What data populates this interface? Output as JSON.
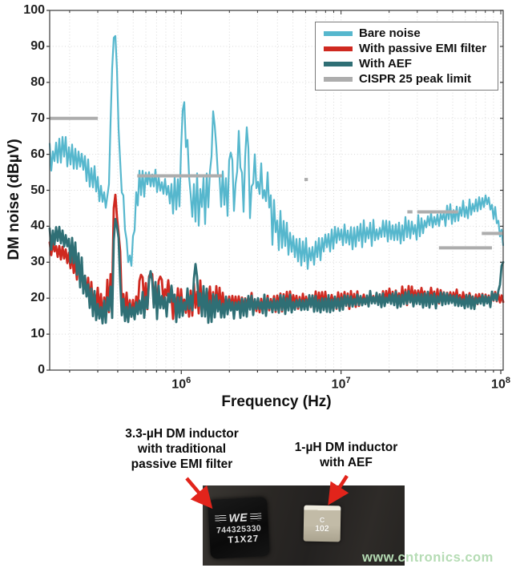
{
  "chart": {
    "y_axis": {
      "label": "DM noise (dBµV)",
      "tick_values": [
        0,
        10,
        20,
        30,
        40,
        50,
        60,
        70,
        80,
        90,
        100
      ]
    },
    "x_axis": {
      "label": "Frequency (Hz)",
      "tick_base": "10",
      "tick_exponents": [
        6,
        7,
        8
      ]
    },
    "legend": [
      {
        "label": "Bare noise",
        "color": "#56b7cd"
      },
      {
        "label": "With passive EMI filter",
        "color": "#cf2920"
      },
      {
        "label": "With AEF",
        "color": "#2f6f75"
      },
      {
        "label": "CISPR 25 peak limit",
        "color": "#adadad"
      }
    ]
  },
  "chart_data": {
    "type": "line",
    "title": "",
    "xlabel": "Frequency (Hz)",
    "ylabel": "DM noise (dBµV)",
    "x_scale": "log",
    "xlim_hz": [
      150000,
      103500000
    ],
    "ylim": [
      0,
      100
    ],
    "grid": true,
    "legend_position": "top-right",
    "series": [
      {
        "name": "Bare noise",
        "color": "#56b7cd",
        "style": "noisy-band",
        "width": 2.2,
        "envelope_f_lo_hi": [
          [
            150000,
            55,
            63
          ],
          [
            180000,
            57,
            67
          ],
          [
            210000,
            55,
            63
          ],
          [
            250000,
            53,
            60
          ],
          [
            300000,
            45,
            56
          ],
          [
            340000,
            42,
            50
          ],
          [
            360000,
            44,
            55
          ],
          [
            390000,
            48,
            62
          ],
          [
            440000,
            34,
            50
          ],
          [
            480000,
            29,
            40
          ],
          [
            530000,
            44,
            56
          ],
          [
            600000,
            49,
            57
          ],
          [
            700000,
            48,
            56
          ],
          [
            850000,
            44,
            55
          ],
          [
            1000000,
            42,
            58
          ],
          [
            1150000,
            40,
            52
          ],
          [
            1350000,
            40,
            57
          ],
          [
            1600000,
            42,
            62
          ],
          [
            1800000,
            40,
            56
          ],
          [
            2100000,
            38,
            58
          ],
          [
            2400000,
            38,
            60
          ],
          [
            2700000,
            38,
            57
          ],
          [
            3000000,
            37,
            56
          ],
          [
            3400000,
            36,
            52
          ],
          [
            3900000,
            34,
            47
          ],
          [
            4500000,
            31,
            43
          ],
          [
            5200000,
            29,
            40
          ],
          [
            6000000,
            27,
            37
          ],
          [
            7000000,
            28,
            37
          ],
          [
            8000000,
            31,
            39
          ],
          [
            10000000,
            33,
            42
          ],
          [
            13000000,
            33,
            42
          ],
          [
            17000000,
            34,
            42
          ],
          [
            22000000,
            34,
            43
          ],
          [
            28000000,
            35,
            43
          ],
          [
            35000000,
            38,
            44
          ],
          [
            45000000,
            40,
            46
          ],
          [
            55000000,
            41,
            47
          ],
          [
            70000000,
            43,
            48
          ],
          [
            82000000,
            45,
            49
          ],
          [
            90000000,
            42,
            47
          ],
          [
            97000000,
            38,
            43
          ],
          [
            103500000,
            33,
            40
          ]
        ],
        "peaks_f_db": [
          [
            360000,
            60
          ],
          [
            372000,
            78
          ],
          [
            381000,
            90
          ],
          [
            390000,
            94.8
          ],
          [
            398000,
            91
          ],
          [
            408000,
            76
          ],
          [
            418000,
            58
          ],
          [
            470000,
            30
          ],
          [
            485000,
            29
          ],
          [
            1020000,
            70
          ],
          [
            1050000,
            74.5
          ],
          [
            1090000,
            64
          ],
          [
            1580000,
            70
          ],
          [
            1620000,
            73.9
          ],
          [
            1660000,
            62
          ],
          [
            2050000,
            60.5
          ],
          [
            2300000,
            66.5
          ],
          [
            2550000,
            67.5
          ],
          [
            2900000,
            60
          ],
          [
            3150000,
            57.5
          ],
          [
            3450000,
            55
          ]
        ]
      },
      {
        "name": "With passive EMI filter",
        "color": "#cf2920",
        "style": "noisy-band",
        "width": 2.8,
        "envelope_f_lo_hi": [
          [
            150000,
            32,
            36
          ],
          [
            190000,
            30,
            35
          ],
          [
            230000,
            24,
            31
          ],
          [
            270000,
            16,
            25
          ],
          [
            320000,
            14,
            22
          ],
          [
            360000,
            15,
            28
          ],
          [
            395000,
            20,
            46
          ],
          [
            430000,
            14,
            24
          ],
          [
            500000,
            14,
            20
          ],
          [
            560000,
            15,
            26
          ],
          [
            650000,
            15,
            27
          ],
          [
            750000,
            15,
            26
          ],
          [
            880000,
            14,
            24
          ],
          [
            1050000,
            14,
            23
          ],
          [
            1300000,
            15,
            25
          ],
          [
            1600000,
            15,
            24
          ],
          [
            2000000,
            15,
            22
          ],
          [
            2600000,
            16,
            22
          ],
          [
            3500000,
            16,
            21
          ],
          [
            5000000,
            16,
            22
          ],
          [
            7000000,
            17,
            22
          ],
          [
            10000000,
            17,
            22
          ],
          [
            15000000,
            17,
            22
          ],
          [
            22000000,
            18,
            23
          ],
          [
            32000000,
            18,
            24
          ],
          [
            45000000,
            18,
            23
          ],
          [
            65000000,
            18,
            22
          ],
          [
            90000000,
            18,
            22
          ],
          [
            103500000,
            18,
            21
          ]
        ],
        "peaks_f_db": [
          [
            385000,
            48
          ],
          [
            391000,
            50.5
          ],
          [
            398000,
            47
          ],
          [
            406000,
            38
          ],
          [
            560000,
            26.5
          ],
          [
            640000,
            27
          ],
          [
            730000,
            26
          ],
          [
            830000,
            25
          ]
        ]
      },
      {
        "name": "With AEF",
        "color": "#2f6f75",
        "style": "noisy-band",
        "width": 2.8,
        "envelope_f_lo_hi": [
          [
            150000,
            33,
            40
          ],
          [
            185000,
            34,
            40
          ],
          [
            220000,
            26,
            36
          ],
          [
            260000,
            15,
            27
          ],
          [
            300000,
            12.5,
            20
          ],
          [
            340000,
            13,
            20
          ],
          [
            370000,
            14,
            32
          ],
          [
            395000,
            16,
            42
          ],
          [
            430000,
            13,
            20
          ],
          [
            500000,
            13,
            19
          ],
          [
            600000,
            14,
            24
          ],
          [
            700000,
            14,
            25
          ],
          [
            850000,
            13,
            22
          ],
          [
            1000000,
            13,
            21
          ],
          [
            1250000,
            14,
            26
          ],
          [
            1500000,
            13,
            22
          ],
          [
            2000000,
            14,
            21
          ],
          [
            2800000,
            15,
            21
          ],
          [
            4000000,
            15,
            21
          ],
          [
            6000000,
            16,
            21
          ],
          [
            10000000,
            16,
            21
          ],
          [
            15000000,
            17,
            22
          ],
          [
            25000000,
            17,
            22
          ],
          [
            40000000,
            17,
            22
          ],
          [
            60000000,
            17,
            21
          ],
          [
            80000000,
            17,
            21
          ],
          [
            95000000,
            18,
            23
          ],
          [
            102000000,
            19,
            26
          ]
        ],
        "peaks_f_db": [
          [
            388000,
            43
          ],
          [
            393000,
            45
          ],
          [
            400000,
            40
          ],
          [
            650000,
            27.5
          ],
          [
            870000,
            23.5
          ],
          [
            1240000,
            29.5
          ],
          [
            102000000,
            28
          ],
          [
            103000000,
            30
          ]
        ]
      },
      {
        "name": "CISPR 25 peak limit",
        "color": "#adadad",
        "style": "limit-segments",
        "width": 4,
        "segments_f1_f2_db": [
          [
            150000,
            300000,
            70
          ],
          [
            530000,
            1800000,
            54
          ],
          [
            5900000,
            6200000,
            53
          ],
          [
            26000000,
            28000000,
            44
          ],
          [
            30000000,
            54000000,
            44
          ],
          [
            41000000,
            88000000,
            34
          ],
          [
            76000000,
            103500000,
            38
          ]
        ]
      }
    ]
  },
  "annotations": {
    "left": [
      "3.3-µH DM inductor",
      "with traditional",
      "passive EMI filter"
    ],
    "right": [
      "1-µH DM inductor",
      "with AEF"
    ]
  },
  "photo": {
    "left_component": {
      "logo": "WE",
      "part_number": "744325330",
      "code": "T1X27"
    },
    "right_component": {
      "line1": "C",
      "line2": "102"
    }
  },
  "watermark": {
    "text": "www.cntronics.com",
    "color": "#b5dcb4"
  }
}
